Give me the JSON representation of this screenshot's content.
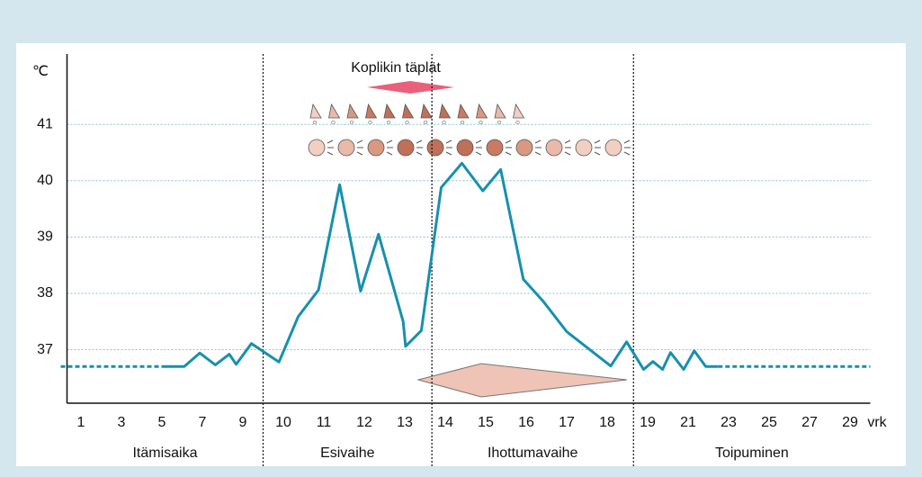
{
  "chart_data": {
    "type": "line",
    "y_unit_label": "℃",
    "x_unit_label": "vrk",
    "annotation": "Koplikin täplät",
    "xlim": [
      0,
      30
    ],
    "xticks": [
      1,
      3,
      5,
      7,
      9,
      10,
      11,
      12,
      13,
      14,
      15,
      16,
      17,
      18,
      19,
      21,
      23,
      25,
      27,
      29
    ],
    "ylim": [
      36.05,
      42.25
    ],
    "yticks": [
      37,
      38,
      39,
      40,
      41
    ],
    "grid": true,
    "phases": [
      "Itämisaika",
      "Esivaihe",
      "Ihottumavaihe",
      "Toipuminen"
    ],
    "phase_boundaries": [
      9.5,
      13.67,
      18.65
    ],
    "series": [
      {
        "color": "#1690ae",
        "style": "dotted",
        "x": [
          0,
          5
        ],
        "values": [
          36.7,
          36.7
        ]
      },
      {
        "color": "#1690ae",
        "style": "solid",
        "x": [
          5.0,
          6.1,
          6.87,
          7.64,
          8.33,
          8.67,
          9.21,
          9.89,
          10.37,
          10.87,
          11.39,
          11.91,
          12.35,
          12.96,
          13.02,
          13.41,
          13.9,
          14.41,
          14.93,
          15.37,
          15.93,
          16.43,
          17.0,
          18.09,
          18.48,
          18.9,
          19.26,
          19.74,
          20.13,
          20.78,
          21.3,
          21.87,
          22.48
        ],
        "values": [
          36.7,
          36.7,
          36.94,
          36.73,
          36.92,
          36.74,
          37.11,
          36.78,
          37.59,
          38.06,
          39.93,
          38.04,
          39.05,
          37.5,
          37.06,
          37.34,
          39.88,
          40.31,
          39.82,
          40.2,
          38.25,
          37.85,
          37.32,
          36.71,
          37.14,
          36.65,
          36.79,
          36.65,
          36.95,
          36.65,
          36.98,
          36.7,
          36.7
        ]
      },
      {
        "color": "#1690ae",
        "style": "dotted",
        "x": [
          22.48,
          30
        ],
        "values": [
          36.7,
          36.7
        ]
      }
    ]
  }
}
